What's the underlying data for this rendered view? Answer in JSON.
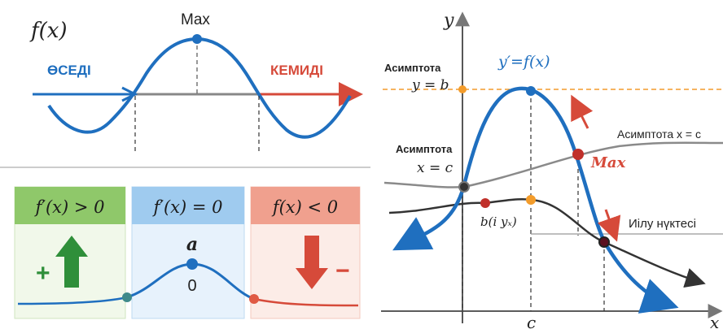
{
  "left_top": {
    "fx_label": "f(x)",
    "max_label": "Max",
    "increasing_label": "ӨСЕДІ",
    "decreasing_label": "КЕМИДІ"
  },
  "left_bottom": {
    "panels": [
      {
        "label": "f′(x) > 0",
        "sign": "+",
        "color": "#8fc86a"
      },
      {
        "label": "f′(x) = 0",
        "point_label": "a",
        "value": "0",
        "color": "#9fcbef"
      },
      {
        "label": "f(x) < 0",
        "sign": "−",
        "color": "#f0a08e"
      }
    ]
  },
  "right": {
    "y_axis": "y",
    "x_axis": "x",
    "c_tick": "c",
    "curve_label": "y′=f(x)",
    "asymptote_hb_title": "Асимптота",
    "asymptote_hb_eq": "y = b",
    "asymptote_vc_title": "Асимптота",
    "asymptote_vc_eq": "x = c",
    "asymptote_right": "Асимптота x = c",
    "max_label": "Max",
    "b_point_label": "b(i yₓ)",
    "inflection_label": "Иілу нүктесі"
  },
  "colors": {
    "blue": "#1f6fbf",
    "red": "#d64a3a",
    "orange": "#f39c2b",
    "green": "#2f8f3a",
    "grey": "#888888"
  }
}
